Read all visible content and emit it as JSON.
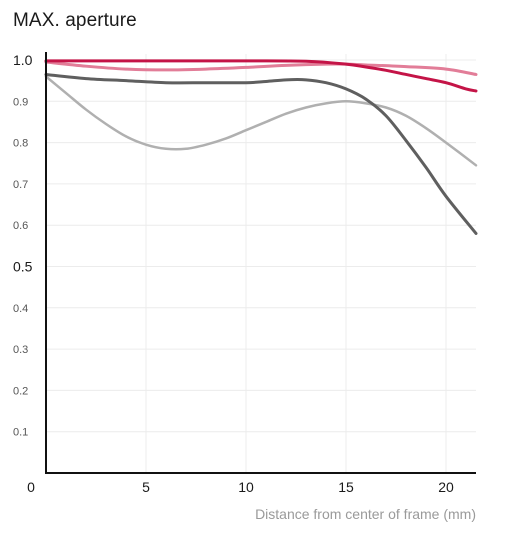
{
  "title": "MAX. aperture",
  "chart_data": {
    "type": "line",
    "title": "MAX. aperture",
    "xlabel": "Distance from center of frame (mm)",
    "ylabel": "",
    "xlim": [
      0,
      21.5
    ],
    "ylim": [
      0,
      1.0
    ],
    "grid": true,
    "x_ticks": [
      {
        "value": 0,
        "label": "0"
      },
      {
        "value": 5,
        "label": "5"
      },
      {
        "value": 10,
        "label": "10"
      },
      {
        "value": 15,
        "label": "15"
      },
      {
        "value": 20,
        "label": "20"
      }
    ],
    "y_ticks": [
      {
        "value": 0.1,
        "label": "0.1",
        "major": false
      },
      {
        "value": 0.2,
        "label": "0.2",
        "major": false
      },
      {
        "value": 0.3,
        "label": "0.3",
        "major": false
      },
      {
        "value": 0.4,
        "label": "0.4",
        "major": false
      },
      {
        "value": 0.5,
        "label": "0.5",
        "major": true
      },
      {
        "value": 0.6,
        "label": "0.6",
        "major": false
      },
      {
        "value": 0.7,
        "label": "0.7",
        "major": false
      },
      {
        "value": 0.8,
        "label": "0.8",
        "major": false
      },
      {
        "value": 0.9,
        "label": "0.9",
        "major": false
      },
      {
        "value": 1.0,
        "label": "1.0",
        "major": true
      }
    ],
    "series": [
      {
        "color": "#b0b0b0",
        "width": 2.5,
        "points": [
          [
            0,
            0.96
          ],
          [
            1,
            0.92
          ],
          [
            2,
            0.88
          ],
          [
            3,
            0.845
          ],
          [
            4,
            0.815
          ],
          [
            5,
            0.795
          ],
          [
            6,
            0.785
          ],
          [
            7,
            0.785
          ],
          [
            8,
            0.795
          ],
          [
            9,
            0.81
          ],
          [
            10,
            0.83
          ],
          [
            11,
            0.85
          ],
          [
            12,
            0.87
          ],
          [
            13,
            0.885
          ],
          [
            14,
            0.895
          ],
          [
            15,
            0.9
          ],
          [
            16,
            0.895
          ],
          [
            17,
            0.885
          ],
          [
            18,
            0.865
          ],
          [
            19,
            0.835
          ],
          [
            20,
            0.8
          ],
          [
            21.5,
            0.745
          ]
        ]
      },
      {
        "color": "#5f5f5f",
        "width": 3,
        "points": [
          [
            0,
            0.965
          ],
          [
            2,
            0.955
          ],
          [
            4,
            0.95
          ],
          [
            6,
            0.945
          ],
          [
            8,
            0.945
          ],
          [
            10,
            0.945
          ],
          [
            11,
            0.948
          ],
          [
            12,
            0.952
          ],
          [
            13,
            0.952
          ],
          [
            14,
            0.945
          ],
          [
            15,
            0.93
          ],
          [
            16,
            0.905
          ],
          [
            17,
            0.865
          ],
          [
            18,
            0.805
          ],
          [
            19,
            0.74
          ],
          [
            20,
            0.67
          ],
          [
            21.5,
            0.58
          ]
        ]
      },
      {
        "color": "#e27d98",
        "width": 3,
        "points": [
          [
            0,
            0.995
          ],
          [
            2,
            0.985
          ],
          [
            4,
            0.978
          ],
          [
            6,
            0.976
          ],
          [
            8,
            0.978
          ],
          [
            10,
            0.982
          ],
          [
            12,
            0.987
          ],
          [
            14,
            0.99
          ],
          [
            15,
            0.99
          ],
          [
            16,
            0.988
          ],
          [
            18,
            0.984
          ],
          [
            20,
            0.978
          ],
          [
            21.5,
            0.965
          ]
        ]
      },
      {
        "color": "#c41447",
        "width": 3,
        "points": [
          [
            0,
            0.998
          ],
          [
            5,
            0.998
          ],
          [
            10,
            0.998
          ],
          [
            13,
            0.997
          ],
          [
            15,
            0.99
          ],
          [
            16,
            0.983
          ],
          [
            17,
            0.975
          ],
          [
            18,
            0.965
          ],
          [
            19,
            0.955
          ],
          [
            20,
            0.945
          ],
          [
            21,
            0.93
          ],
          [
            21.5,
            0.925
          ]
        ]
      }
    ]
  }
}
